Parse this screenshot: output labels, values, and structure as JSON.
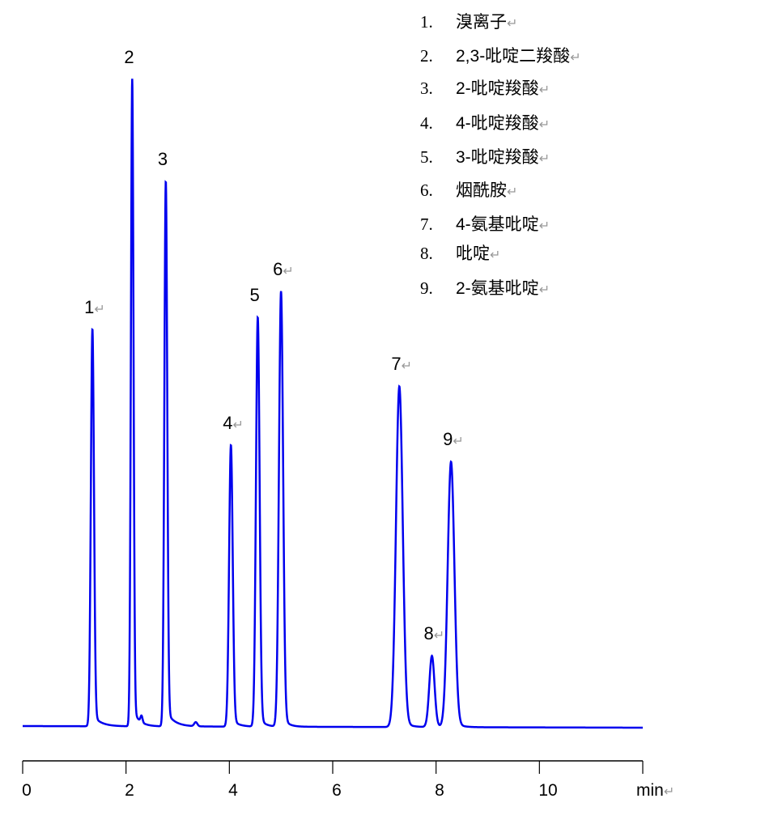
{
  "chart_data": {
    "type": "line",
    "title": "",
    "xlabel": "min",
    "ylabel": "",
    "xlim": [
      0,
      12
    ],
    "x_ticks": [
      0,
      2,
      4,
      6,
      8,
      10
    ],
    "x_tick_labels": [
      "0",
      "2",
      "4",
      "6",
      "8",
      "10"
    ],
    "grid": false,
    "line_color": "#0000ee",
    "return_mark": "↵",
    "peaks": [
      {
        "label": "1",
        "time": 1.35,
        "height": 491
      },
      {
        "label": "2",
        "time": 2.12,
        "height": 800
      },
      {
        "label": "3",
        "time": 2.77,
        "height": 674
      },
      {
        "label": "4",
        "time": 4.03,
        "height": 348
      },
      {
        "label": "5",
        "time": 4.55,
        "height": 506
      },
      {
        "label": "6",
        "time": 5.0,
        "height": 538
      },
      {
        "label": "7",
        "time": 7.29,
        "height": 421
      },
      {
        "label": "8",
        "time": 7.92,
        "height": 88
      },
      {
        "label": "9",
        "time": 8.29,
        "height": 328
      }
    ],
    "legend": [
      {
        "num": "1.",
        "name": "溴离子"
      },
      {
        "num": "2.",
        "name": "2,3-吡啶二羧酸"
      },
      {
        "num": "3.",
        "name": "2-吡啶羧酸"
      },
      {
        "num": "4.",
        "name": "4-吡啶羧酸"
      },
      {
        "num": "5.",
        "name": "3-吡啶羧酸"
      },
      {
        "num": "6.",
        "name": "烟酰胺"
      },
      {
        "num": "7.",
        "name": "4-氨基吡啶"
      },
      {
        "num": "8.",
        "name": "吡啶"
      },
      {
        "num": "9.",
        "name": "2-氨基吡啶"
      }
    ]
  }
}
